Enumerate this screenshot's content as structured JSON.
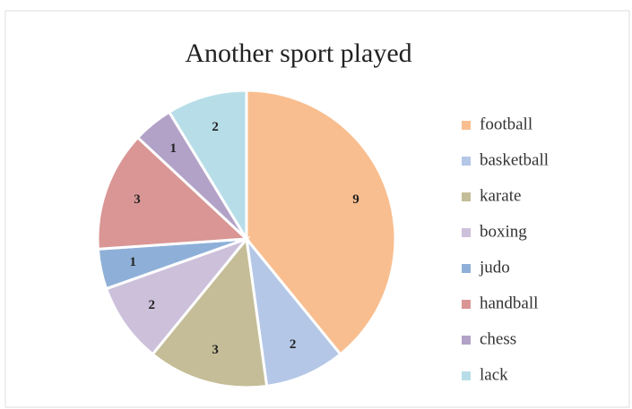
{
  "chart_data": {
    "type": "pie",
    "title": "Another sport played",
    "categories": [
      "football",
      "basketball",
      "karate",
      "boxing",
      "judo",
      "handball",
      "chess",
      "lack"
    ],
    "values": [
      9,
      2,
      3,
      2,
      1,
      3,
      1,
      2
    ],
    "colors": [
      "#f9be8f",
      "#b4c7e7",
      "#c4bd97",
      "#ccc0da",
      "#8eb0d8",
      "#d99694",
      "#b3a2c7",
      "#b7dee8"
    ],
    "legend": "right"
  }
}
